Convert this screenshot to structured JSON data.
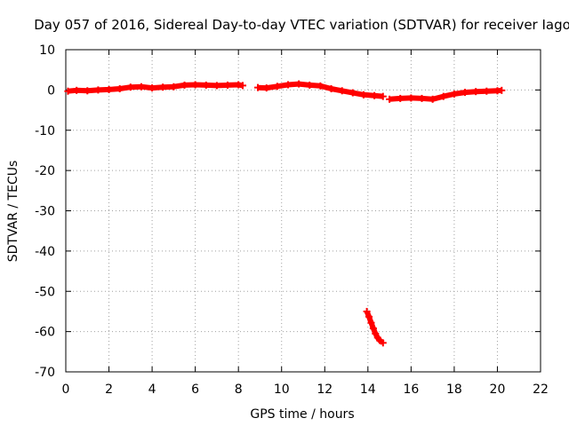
{
  "chart_data": {
    "type": "scatter",
    "title": "Day 057 of 2016, Sidereal Day-to-day VTEC variation (SDTVAR) for receiver Iago",
    "xlabel": "GPS time / hours",
    "ylabel": "SDTVAR / TECUs",
    "xlim": [
      0,
      22
    ],
    "ylim": [
      -70,
      10
    ],
    "xticks": [
      "0",
      "2",
      "4",
      "6",
      "8",
      "10",
      "12",
      "14",
      "16",
      "18",
      "20",
      "22"
    ],
    "yticks": [
      "10",
      "0",
      "-10",
      "-20",
      "-30",
      "-40",
      "-50",
      "-60",
      "-70"
    ],
    "grid": true,
    "series": [
      {
        "name": "SDTVAR",
        "color": "#ff0000",
        "segments": [
          {
            "x": [
              0.1,
              0.5,
              1.0,
              1.5,
              2.0,
              2.5,
              3.0,
              3.5,
              4.0,
              4.5,
              5.0,
              5.5,
              6.0,
              6.5,
              7.0,
              7.5,
              8.0,
              8.2
            ],
            "y": [
              -0.3,
              -0.1,
              -0.2,
              0.0,
              0.1,
              0.3,
              0.7,
              0.8,
              0.5,
              0.7,
              0.8,
              1.2,
              1.3,
              1.2,
              1.1,
              1.2,
              1.3,
              1.1
            ]
          },
          {
            "x": [
              8.9,
              9.3,
              9.8,
              10.3,
              10.8,
              11.3,
              11.8,
              12.3,
              12.8,
              13.3,
              13.8,
              14.3,
              14.7
            ],
            "y": [
              0.6,
              0.5,
              0.9,
              1.3,
              1.5,
              1.2,
              1.0,
              0.3,
              -0.2,
              -0.7,
              -1.2,
              -1.4,
              -1.6
            ]
          },
          {
            "x": [
              15.0,
              15.5,
              16.0,
              16.5,
              17.0,
              17.5,
              18.0,
              18.5,
              19.0,
              19.5,
              20.0,
              20.2
            ],
            "y": [
              -2.3,
              -2.1,
              -2.0,
              -2.1,
              -2.3,
              -1.6,
              -1.0,
              -0.6,
              -0.4,
              -0.3,
              -0.2,
              -0.1
            ]
          },
          {
            "x": [
              13.95,
              14.05,
              14.15,
              14.25,
              14.35,
              14.45,
              14.55,
              14.7
            ],
            "y": [
              -55.0,
              -56.3,
              -57.8,
              -59.2,
              -60.5,
              -61.5,
              -62.2,
              -62.8
            ]
          }
        ]
      }
    ]
  }
}
